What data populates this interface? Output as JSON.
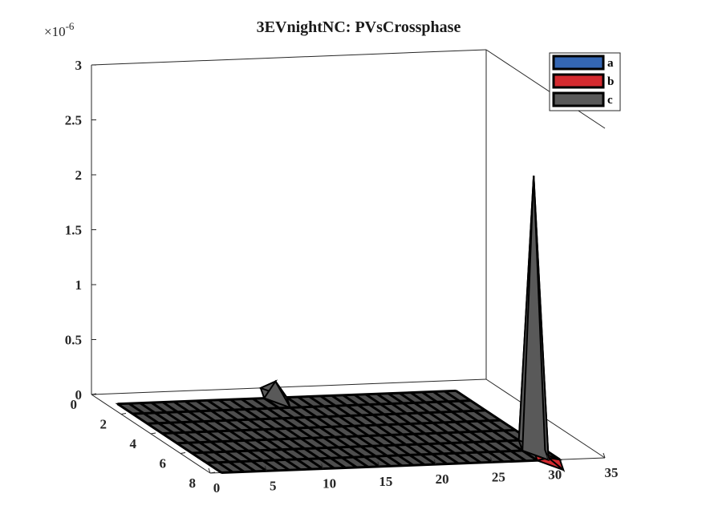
{
  "chart_data": {
    "type": "surface3d",
    "title": "3EVnightNC: PVsCrossphase",
    "z_multiplier_label": "×10",
    "z_multiplier_exponent": "-6",
    "zlim": [
      0,
      3
    ],
    "z_scale": 1e-06,
    "z_ticks": [
      0,
      0.5,
      1,
      1.5,
      2,
      2.5,
      3
    ],
    "z_tick_labels": [
      "0",
      "0.5",
      "1",
      "1.5",
      "2",
      "2.5",
      "3"
    ],
    "xlim": [
      0,
      35
    ],
    "x_ticks": [
      0,
      5,
      10,
      15,
      20,
      25,
      30,
      35
    ],
    "x_tick_labels": [
      "0",
      "5",
      "10",
      "15",
      "20",
      "25",
      "30",
      "35"
    ],
    "ylim": [
      0,
      8
    ],
    "y_ticks": [
      0,
      2,
      4,
      6,
      8
    ],
    "y_tick_labels": [
      "0",
      "2",
      "4",
      "6",
      "8"
    ],
    "legend_position": "top-right",
    "series": [
      {
        "name": "a",
        "color": "#3466b3",
        "peaks": []
      },
      {
        "name": "b",
        "color": "#d42a2f",
        "peaks": [
          {
            "x": 30,
            "y": 8,
            "z": 0.02
          }
        ]
      },
      {
        "name": "c",
        "color": "#595959",
        "peaks": [
          {
            "x": 15,
            "y": 1,
            "z": 0.15
          },
          {
            "x": 30,
            "y": 7,
            "z": 2.5
          }
        ]
      }
    ],
    "grid_x": [
      1,
      2,
      3,
      4,
      5,
      6,
      7,
      8,
      9,
      10,
      11,
      12,
      13,
      14,
      15,
      16,
      17,
      18,
      19,
      20,
      21,
      22,
      23,
      24,
      25,
      26,
      27,
      28,
      29,
      30,
      31
    ],
    "grid_y": [
      1,
      2,
      3,
      4,
      5,
      6,
      7,
      8
    ],
    "grid_on": false
  }
}
